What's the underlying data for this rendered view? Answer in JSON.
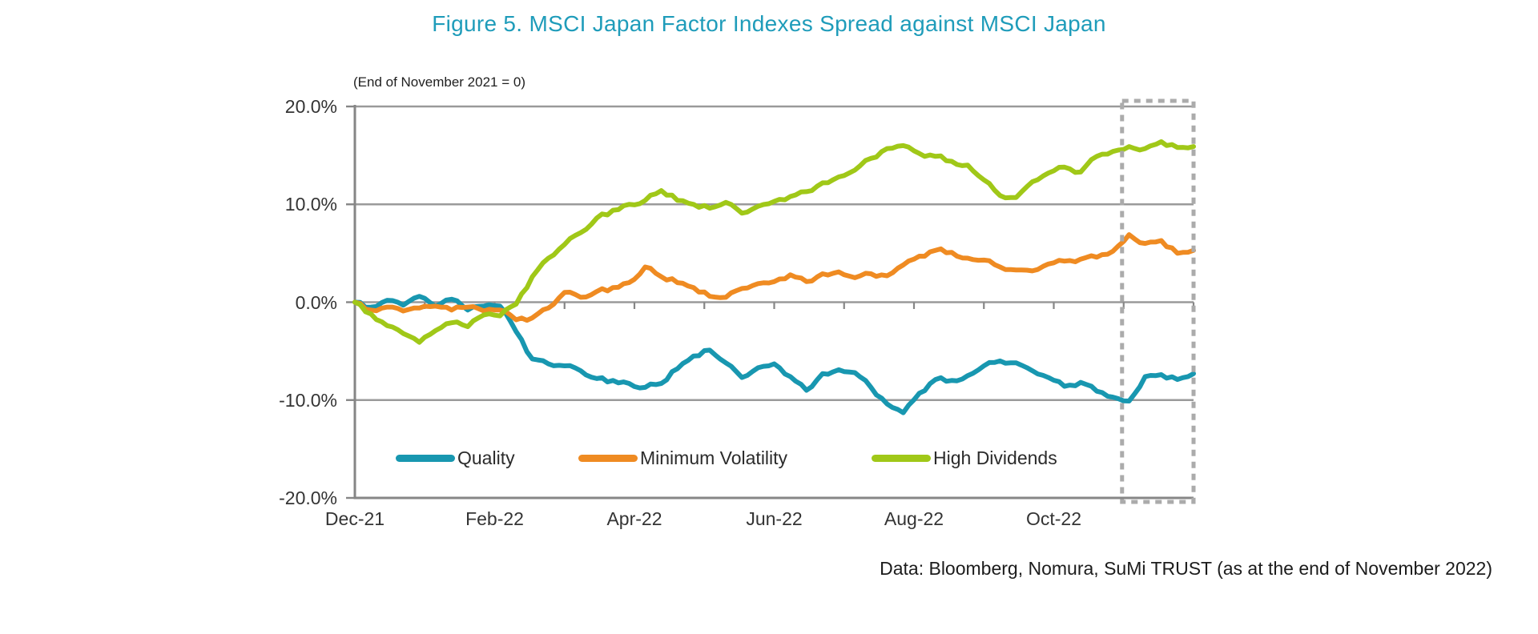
{
  "figure": {
    "title": "Figure 5. MSCI Japan Factor Indexes Spread against MSCI Japan",
    "title_color": "#1f9cba",
    "subtitle_note": "(End of November 2021 = 0)",
    "source_note": "Data: Bloomberg, Nomura, SuMi TRUST (as at the end of November 2022)"
  },
  "legend": {
    "items": [
      {
        "label": "Quality",
        "color": "#1897b0"
      },
      {
        "label": "Minimum Volatility",
        "color": "#ef8b22"
      },
      {
        "label": "High Dividends",
        "color": "#a0c818"
      }
    ]
  },
  "chart_data": {
    "type": "line",
    "title": "Figure 5. MSCI Japan Factor Indexes Spread against MSCI Japan",
    "note": "(End of November 2021 = 0)",
    "sampling": "weekly points, week 0 = end of November 2021 through week 52 = end of November 2022",
    "x_axis": {
      "tick_labels": [
        "Dec-21",
        "Feb-22",
        "Apr-22",
        "Jun-22",
        "Aug-22",
        "Oct-22"
      ],
      "tick_label_month_positions": [
        0,
        2,
        4,
        6,
        8,
        10
      ],
      "months_total": 12,
      "minor_tick_every_months": 1
    },
    "y_axis": {
      "tick_labels": [
        "20.0%",
        "10.0%",
        "0.0%",
        "-10.0%",
        "-20.0%"
      ],
      "tick_values": [
        20,
        10,
        0,
        -10,
        -20
      ],
      "ylim": [
        -20,
        20
      ],
      "gridline_values": [
        20,
        10,
        0,
        -10
      ],
      "unit": "percent"
    },
    "highlight_box": {
      "from_month": 11,
      "to_month": 12,
      "style": "gray-dashed-rectangle"
    },
    "colors": {
      "axis": "#868686",
      "gridline": "#9a9a9a",
      "highlight_box": "#ababab"
    },
    "series": [
      {
        "name": "Quality",
        "color": "#1897b0",
        "values": [
          0.0,
          -0.5,
          0.2,
          -0.3,
          0.6,
          -0.4,
          0.3,
          -0.8,
          -0.4,
          -0.4,
          -3.0,
          -5.8,
          -6.3,
          -6.5,
          -7.0,
          -7.8,
          -8.0,
          -8.3,
          -8.7,
          -8.3,
          -6.8,
          -5.5,
          -4.9,
          -6.2,
          -7.7,
          -6.7,
          -6.3,
          -7.6,
          -9.0,
          -7.3,
          -6.9,
          -7.2,
          -8.7,
          -10.4,
          -11.3,
          -9.3,
          -7.9,
          -8.0,
          -7.5,
          -6.5,
          -6.0,
          -6.2,
          -7.0,
          -7.7,
          -8.6,
          -8.2,
          -9.1,
          -9.7,
          -10.1,
          -7.6,
          -7.4,
          -7.9,
          -7.3
        ]
      },
      {
        "name": "Minimum Volatility",
        "color": "#ef8b22",
        "values": [
          0.0,
          -0.8,
          -0.5,
          -0.9,
          -0.6,
          -0.4,
          -0.8,
          -0.5,
          -0.9,
          -0.8,
          -1.8,
          -1.6,
          -0.6,
          1.0,
          0.5,
          1.1,
          1.5,
          2.0,
          3.6,
          2.6,
          2.0,
          1.5,
          0.6,
          0.5,
          1.4,
          1.9,
          2.1,
          2.8,
          2.1,
          2.9,
          3.1,
          2.5,
          2.9,
          2.7,
          3.8,
          4.7,
          5.3,
          5.1,
          4.5,
          4.3,
          3.6,
          3.3,
          3.2,
          3.9,
          4.2,
          4.4,
          4.6,
          5.2,
          6.9,
          6.0,
          6.3,
          5.0,
          5.3
        ]
      },
      {
        "name": "High Dividends",
        "color": "#a0c818",
        "values": [
          0.0,
          -1.2,
          -2.4,
          -3.2,
          -4.1,
          -2.9,
          -2.1,
          -2.5,
          -1.3,
          -1.4,
          -0.2,
          2.6,
          4.5,
          5.9,
          7.1,
          8.6,
          9.4,
          10.0,
          10.4,
          11.4,
          10.4,
          10.0,
          9.6,
          10.2,
          9.1,
          9.8,
          10.3,
          10.8,
          11.3,
          12.2,
          12.8,
          13.5,
          14.7,
          15.7,
          16.0,
          15.2,
          14.9,
          14.4,
          14.0,
          12.5,
          10.9,
          10.7,
          12.3,
          13.2,
          13.8,
          13.3,
          14.9,
          15.4,
          15.9,
          15.7,
          16.4,
          15.8,
          15.9
        ]
      }
    ]
  }
}
